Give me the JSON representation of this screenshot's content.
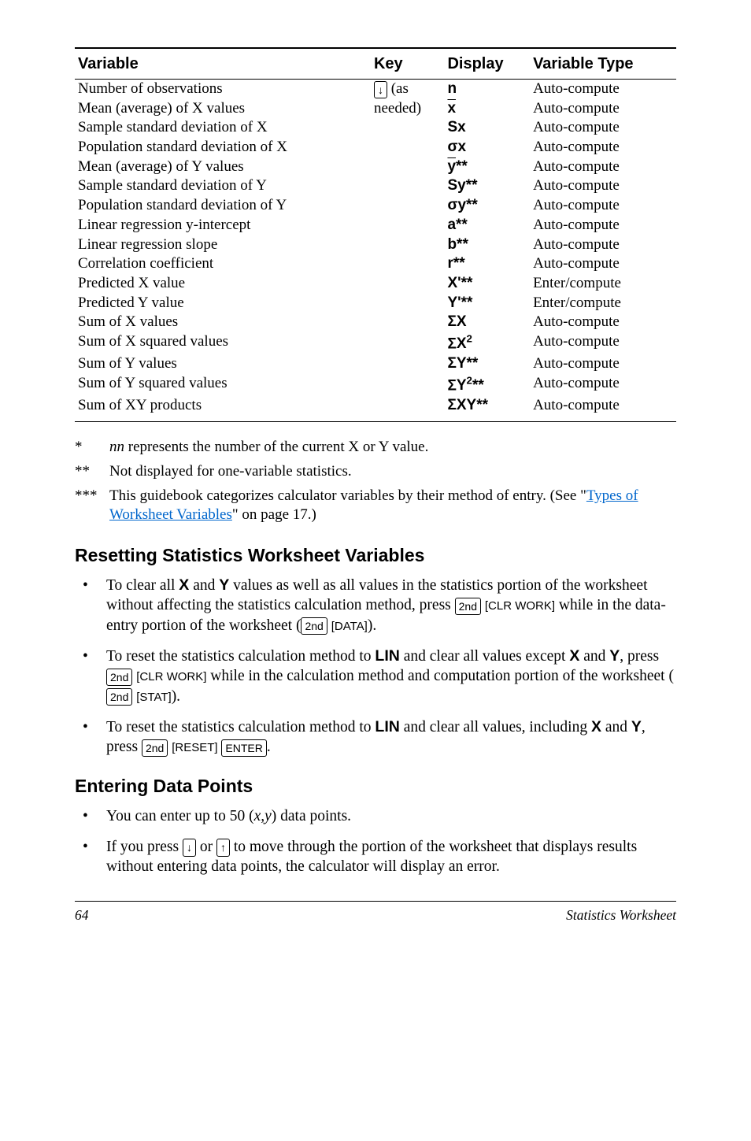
{
  "table": {
    "headers": [
      "Variable",
      "Key",
      "Display",
      "Variable Type"
    ],
    "rows": [
      {
        "var": "Number of observations",
        "key": "↓ (as",
        "disp": "n",
        "type": "Auto-compute"
      },
      {
        "var": "Mean (average) of X values",
        "key": "needed)",
        "disp": "x̄",
        "type": "Auto-compute"
      },
      {
        "var": "Sample standard deviation of X",
        "key": "",
        "disp": "Sx",
        "type": "Auto-compute"
      },
      {
        "var": "Population standard deviation of X",
        "key": "",
        "disp": "σx",
        "type": "Auto-compute"
      },
      {
        "var": "Mean (average) of Y values",
        "key": "",
        "disp": "ȳ**",
        "type": "Auto-compute"
      },
      {
        "var": "Sample standard deviation of Y",
        "key": "",
        "disp": "Sy**",
        "type": "Auto-compute"
      },
      {
        "var": "Population standard deviation of Y",
        "key": "",
        "disp": "σy**",
        "type": "Auto-compute"
      },
      {
        "var": "Linear regression y-intercept",
        "key": "",
        "disp": "a**",
        "type": "Auto-compute"
      },
      {
        "var": "Linear regression slope",
        "key": "",
        "disp": "b**",
        "type": "Auto-compute"
      },
      {
        "var": "Correlation coefficient",
        "key": "",
        "disp": "r**",
        "type": "Auto-compute"
      },
      {
        "var": "Predicted X value",
        "key": "",
        "disp": "X'**",
        "type": "Enter/compute"
      },
      {
        "var": "Predicted Y value",
        "key": "",
        "disp": "Y'**",
        "type": "Enter/compute"
      },
      {
        "var": "Sum of X values",
        "key": "",
        "disp": "ΣX",
        "type": "Auto-compute"
      },
      {
        "var": "Sum of X squared values",
        "key": "",
        "disp": "ΣX²",
        "type": "Auto-compute"
      },
      {
        "var": "Sum of Y values",
        "key": "",
        "disp": "ΣY**",
        "type": "Auto-compute"
      },
      {
        "var": "Sum of Y squared values",
        "key": "",
        "disp": "ΣY²**",
        "type": "Auto-compute"
      },
      {
        "var": "Sum of XY products",
        "key": "",
        "disp": "ΣXY**",
        "type": "Auto-compute"
      }
    ]
  },
  "footnotes": {
    "f1": {
      "mark": "*",
      "text_before": "nn",
      "text_after": " represents the number of the current X or Y value."
    },
    "f2": {
      "mark": "**",
      "text": "Not displayed for one-variable statistics."
    },
    "f3": {
      "mark": "***",
      "text_before": "This guidebook categorizes calculator variables by their method of entry. (See \"",
      "link": "Types of Worksheet Variables",
      "text_after": "\" on page 17.)"
    }
  },
  "section1": {
    "title": "Resetting Statistics Worksheet Variables",
    "bullets": {
      "b1_p1": "To clear all ",
      "b1_x": "X",
      "b1_p2": " and ",
      "b1_y": "Y",
      "b1_p3": " values as well as all values in the statistics portion of the worksheet without affecting the statistics calculation method, press ",
      "b1_key1": "2nd",
      "b1_key2": "[CLR WORK]",
      "b1_p4": " while in the data-entry portion of the worksheet (",
      "b1_key3": "2nd",
      "b1_key4": "[DATA]",
      "b1_p5": ").",
      "b2_p1": "To reset the statistics calculation method to ",
      "b2_lin": "LIN",
      "b2_p2": " and clear all values except ",
      "b2_x": "X",
      "b2_p3": " and ",
      "b2_y": "Y",
      "b2_p4": ", press ",
      "b2_key1": "2nd",
      "b2_key2": "[CLR WORK]",
      "b2_p5": " while in the calculation method and computation portion of the worksheet (",
      "b2_key3": "2nd",
      "b2_key4": "[STAT]",
      "b2_p6": ").",
      "b3_p1": "To reset the statistics calculation method to ",
      "b3_lin": "LIN",
      "b3_p2": " and clear all values, including ",
      "b3_x": "X",
      "b3_p3": " and ",
      "b3_y": "Y",
      "b3_p4": ", press ",
      "b3_key1": "2nd",
      "b3_key2": "[RESET]",
      "b3_key3": "ENTER",
      "b3_p5": "."
    }
  },
  "section2": {
    "title": "Entering Data Points",
    "bullets": {
      "b1_p1": "You can enter up to 50 (",
      "b1_xy": "x,y",
      "b1_p2": ") data points.",
      "b2_p1": "If you press ",
      "b2_key1": "↓",
      "b2_p2": " or ",
      "b2_key2": "↑",
      "b2_p3": " to move through the portion of the worksheet that displays results without entering data points, the calculator will display an error."
    }
  },
  "footer": {
    "page": "64",
    "title": "Statistics Worksheet"
  }
}
